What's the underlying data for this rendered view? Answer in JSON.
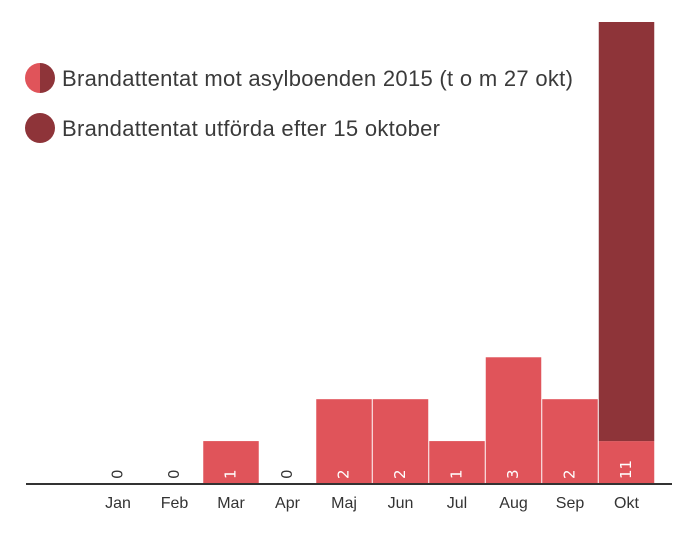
{
  "chart_data": {
    "type": "bar",
    "categories": [
      "Jan",
      "Feb",
      "Mar",
      "Apr",
      "Maj",
      "Jun",
      "Jul",
      "Aug",
      "Sep",
      "Okt"
    ],
    "series": [
      {
        "name": "Brandattentat mot asylboenden 2015 (t o m 27 okt)",
        "color": "#e0545a",
        "values": [
          0,
          0,
          1,
          0,
          2,
          2,
          1,
          3,
          2,
          1
        ]
      },
      {
        "name": "Brandattentat utförda efter 15 oktober",
        "color": "#8e3439",
        "values": [
          0,
          0,
          0,
          0,
          0,
          0,
          0,
          0,
          0,
          10
        ]
      }
    ],
    "data_labels": [
      "0",
      "0",
      "1",
      "0",
      "2",
      "2",
      "1",
      "3",
      "2",
      "11"
    ],
    "stacked": true,
    "ylim": [
      0,
      11
    ],
    "legend": {
      "position": "top-left",
      "items": [
        {
          "label": "Brandattentat mot asylboenden 2015 (t o m 27 okt)",
          "marker": "split-circle"
        },
        {
          "label": "Brandattentat utförda efter 15 oktober",
          "marker": "circle"
        }
      ]
    },
    "colors": {
      "primary": "#e0545a",
      "secondary": "#8e3439",
      "axis": "#333333",
      "zero_label": "#333333",
      "value_label_on_bar": "#ffffff"
    },
    "grid": false
  }
}
